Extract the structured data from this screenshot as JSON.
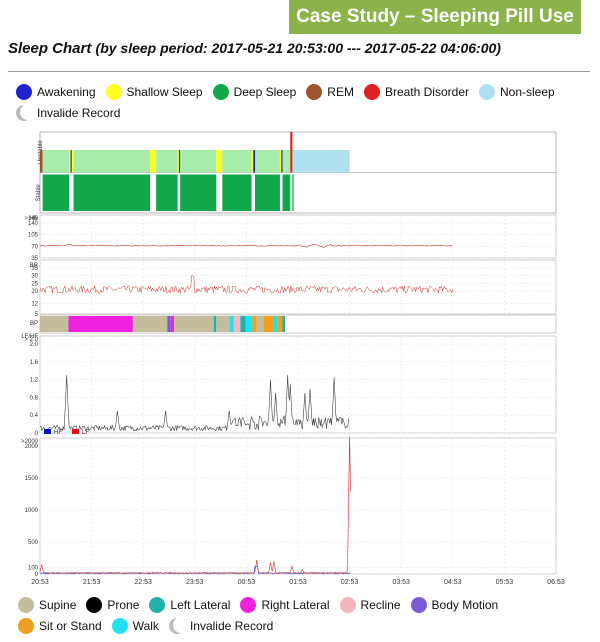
{
  "banner": "Case Study – Sleeping Pill Use",
  "title": {
    "main": "Sleep Chart",
    "sub": "(by sleep period: 2017-05-21 20:53:00 --- 2017-05-22 04:06:00)"
  },
  "legend_top": [
    {
      "label": "Awakening",
      "color": "#2222cc"
    },
    {
      "label": "Shallow Sleep",
      "color": "#ffff22"
    },
    {
      "label": "Deep Sleep",
      "color": "#11a84a"
    },
    {
      "label": "REM",
      "color": "#a0522d"
    },
    {
      "label": "Breath Disorder",
      "color": "#e02020"
    },
    {
      "label": "Non-sleep",
      "color": "#aee0f0"
    },
    {
      "label": "Invalide Record",
      "color": "invalid"
    }
  ],
  "legend_bottom": [
    {
      "label": "Supine",
      "color": "#c3bd9e"
    },
    {
      "label": "Prone",
      "color": "#000000"
    },
    {
      "label": "Left Lateral",
      "color": "#20b2aa"
    },
    {
      "label": "Right Lateral",
      "color": "#ee22dd"
    },
    {
      "label": "Recline",
      "color": "#f5b6c0"
    },
    {
      "label": "Body Motion",
      "color": "#7b5cd6"
    },
    {
      "label": "Sit or Stand",
      "color": "#f0a020"
    },
    {
      "label": "Walk",
      "color": "#22e0f0"
    },
    {
      "label": "Invalide Record",
      "color": "invalid"
    }
  ],
  "chart_data": {
    "type": "line",
    "x_ticks": [
      "20:53",
      "21:53",
      "22:53",
      "23:53",
      "00:53",
      "01:53",
      "02:53",
      "03:53",
      "04:53",
      "05:53",
      "06:53"
    ],
    "stage_panel": {
      "labels": [
        "Unstable",
        "Stable"
      ],
      "segments": [
        {
          "start": 0,
          "end": 0.3,
          "stage": "REM"
        },
        {
          "start": 0.3,
          "end": 3.4,
          "stage": "Deep Sleep"
        },
        {
          "start": 3.4,
          "end": 3.55,
          "stage": "Shallow Sleep"
        },
        {
          "start": 3.55,
          "end": 3.7,
          "stage": "Awakening"
        },
        {
          "start": 3.7,
          "end": 3.9,
          "stage": "Shallow Sleep"
        },
        {
          "start": 3.9,
          "end": 12.8,
          "stage": "Deep Sleep"
        },
        {
          "start": 12.8,
          "end": 13.5,
          "stage": "Shallow Sleep"
        },
        {
          "start": 13.5,
          "end": 16,
          "stage": "Deep Sleep"
        },
        {
          "start": 16,
          "end": 16.15,
          "stage": "Shallow Sleep"
        },
        {
          "start": 16.15,
          "end": 16.3,
          "stage": "Awakening"
        },
        {
          "start": 16.3,
          "end": 20.5,
          "stage": "Deep Sleep"
        },
        {
          "start": 20.5,
          "end": 21.2,
          "stage": "Shallow Sleep"
        },
        {
          "start": 21.2,
          "end": 24.6,
          "stage": "Deep Sleep"
        },
        {
          "start": 24.6,
          "end": 24.8,
          "stage": "Shallow Sleep"
        },
        {
          "start": 24.8,
          "end": 25,
          "stage": "Awakening"
        },
        {
          "start": 25,
          "end": 27.9,
          "stage": "Deep Sleep"
        },
        {
          "start": 27.9,
          "end": 28.05,
          "stage": "Shallow Sleep"
        },
        {
          "start": 28.05,
          "end": 28.2,
          "stage": "Awakening"
        },
        {
          "start": 28.2,
          "end": 29.1,
          "stage": "Deep Sleep"
        },
        {
          "start": 29.1,
          "end": 29.35,
          "stage": "Breath Disorder"
        },
        {
          "start": 29.35,
          "end": 29.5,
          "stage": "Deep Sleep"
        },
        {
          "start": 29.5,
          "end": 36,
          "stage": "Non-sleep"
        }
      ]
    },
    "hr": {
      "label": "HR",
      "ticks": [
        ">140",
        "140",
        "105",
        "70",
        "35"
      ],
      "range": [
        35,
        140
      ]
    },
    "br": {
      "label": "BR",
      "ticks": [
        "35",
        "30",
        "25",
        "20",
        "12",
        "5"
      ],
      "range": [
        5,
        35
      ]
    },
    "bp": {
      "label": "BP",
      "segments": [
        {
          "start": 0,
          "end": 3.3,
          "pos": "Supine"
        },
        {
          "start": 3.3,
          "end": 10.8,
          "pos": "Right Lateral"
        },
        {
          "start": 10.8,
          "end": 14.8,
          "pos": "Supine"
        },
        {
          "start": 14.8,
          "end": 15.2,
          "pos": "Body Motion"
        },
        {
          "start": 15.2,
          "end": 15.6,
          "pos": "Right Lateral"
        },
        {
          "start": 15.6,
          "end": 20.2,
          "pos": "Supine"
        },
        {
          "start": 20.2,
          "end": 20.5,
          "pos": "Left Lateral"
        },
        {
          "start": 20.5,
          "end": 22,
          "pos": "Supine"
        },
        {
          "start": 22,
          "end": 22.5,
          "pos": "Walk"
        },
        {
          "start": 22.5,
          "end": 23.3,
          "pos": "Recline"
        },
        {
          "start": 23.3,
          "end": 23.9,
          "pos": "Left Lateral"
        },
        {
          "start": 23.9,
          "end": 24.7,
          "pos": "Walk"
        },
        {
          "start": 24.7,
          "end": 25.2,
          "pos": "Sit or Stand"
        },
        {
          "start": 25.2,
          "end": 26,
          "pos": "Supine"
        },
        {
          "start": 26,
          "end": 27.2,
          "pos": "Sit or Stand"
        },
        {
          "start": 27.2,
          "end": 27.6,
          "pos": "Walk"
        },
        {
          "start": 27.6,
          "end": 28.2,
          "pos": "Sit or Stand"
        },
        {
          "start": 28.2,
          "end": 28.5,
          "pos": "Left Lateral"
        }
      ]
    },
    "lfhf": {
      "label": "LF/HF",
      "ticks": [
        "> 2.0",
        "2.0",
        "1.6",
        "1.2",
        "0.8",
        "0.4",
        "0"
      ],
      "range": [
        0,
        2.0
      ]
    },
    "hf_lf": {
      "legend": [
        "HF",
        "LF"
      ],
      "legend_colors": [
        "#1111bb",
        "#dd1111"
      ],
      "ticks": [
        ">2000",
        "2000",
        "1500",
        "1000",
        "500",
        "100",
        "0"
      ],
      "range": [
        0,
        2000
      ]
    }
  }
}
